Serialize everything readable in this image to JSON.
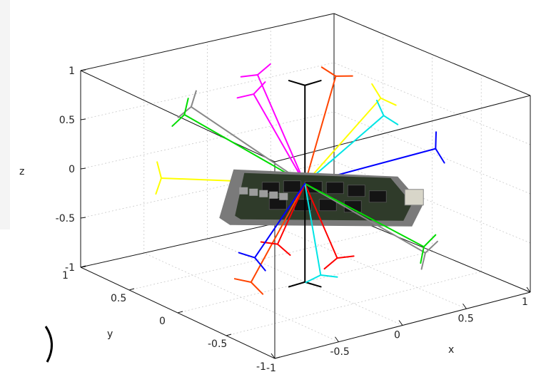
{
  "chart_data": {
    "type": "scatter",
    "subtype": "3d-vectors",
    "title": "",
    "xlabel": "x",
    "ylabel": "y",
    "zlabel": "z",
    "xlim": [
      -1,
      1
    ],
    "ylim": [
      -1,
      1
    ],
    "zlim": [
      -1,
      1
    ],
    "grid": true,
    "x_ticks": [
      "-1",
      "-0.5",
      "0",
      "0.5",
      "1"
    ],
    "y_ticks": [
      "-1",
      "-0.5",
      "0",
      "0.5",
      "1"
    ],
    "z_ticks": [
      "1",
      "0.5",
      "0",
      "-0.5",
      "-1"
    ],
    "vectors": [
      {
        "color": "#000000",
        "dir": [
          0.0,
          0.0,
          1.0
        ]
      },
      {
        "color": "#000000",
        "dir": [
          0.0,
          0.0,
          -1.0
        ]
      },
      {
        "color": "#888888",
        "dir": [
          -0.55,
          0.45,
          0.75
        ]
      },
      {
        "color": "#888888",
        "dir": [
          0.6,
          -0.45,
          -0.7
        ]
      },
      {
        "color": "#ff00ff",
        "dir": [
          -0.25,
          0.2,
          0.9
        ]
      },
      {
        "color": "#ff00ff",
        "dir": [
          0.05,
          0.55,
          0.85
        ]
      },
      {
        "color": "#00dd00",
        "dir": [
          -0.45,
          0.65,
          0.55
        ]
      },
      {
        "color": "#00dd00",
        "dir": [
          0.55,
          -0.5,
          -0.6
        ]
      },
      {
        "color": "#ff4400",
        "dir": [
          0.55,
          0.4,
          0.75
        ]
      },
      {
        "color": "#ff4400",
        "dir": [
          -0.5,
          -0.1,
          -0.8
        ]
      },
      {
        "color": "#ff0000",
        "dir": [
          0.1,
          -0.2,
          -0.7
        ]
      },
      {
        "color": "#ff0000",
        "dir": [
          -0.1,
          0.15,
          -0.65
        ]
      },
      {
        "color": "#ffff00",
        "dir": [
          0.75,
          0.2,
          0.55
        ]
      },
      {
        "color": "#ffff00",
        "dir": [
          -0.9,
          0.3,
          0.2
        ]
      },
      {
        "color": "#00e5e5",
        "dir": [
          0.85,
          0.3,
          0.3
        ]
      },
      {
        "color": "#00e5e5",
        "dir": [
          -0.45,
          -0.75,
          -0.45
        ]
      },
      {
        "color": "#0000ff",
        "dir": [
          0.95,
          -0.1,
          0.1
        ]
      },
      {
        "color": "#0000ff",
        "dir": [
          -0.7,
          -0.4,
          -0.35
        ]
      }
    ]
  }
}
